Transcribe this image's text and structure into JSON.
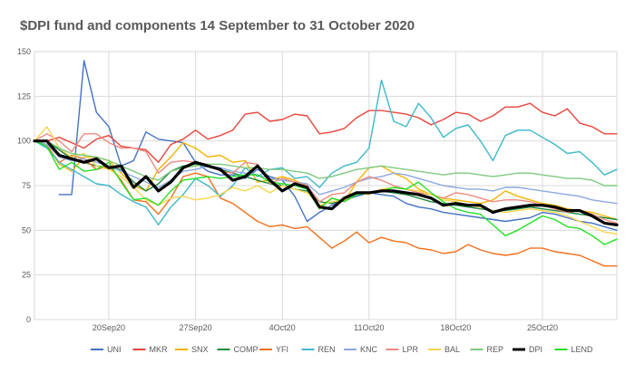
{
  "chart_data": {
    "type": "line",
    "title": "$DPI fund and components 14 September to 31 October 2020",
    "xlabel": "",
    "ylabel": "",
    "ylim": [
      0,
      150
    ],
    "y_ticks": [
      "0",
      "25",
      "50",
      "75",
      "100",
      "125",
      "150"
    ],
    "x_range": [
      0,
      47
    ],
    "x_ticks": [
      {
        "x": 6,
        "label": "20Sep20"
      },
      {
        "x": 13,
        "label": "27Sep20"
      },
      {
        "x": 20,
        "label": "4Oct20"
      },
      {
        "x": 27,
        "label": "11Oct20"
      },
      {
        "x": 34,
        "label": "18Oct20"
      },
      {
        "x": 41,
        "label": "25Oct20"
      }
    ],
    "grid": true,
    "legend_position": "bottom",
    "series": [
      {
        "name": "UNI",
        "color": "#4472C4",
        "values": [
          null,
          null,
          70,
          70,
          145,
          116,
          108,
          86,
          89,
          105,
          101,
          100,
          99,
          88,
          83,
          81,
          81,
          79,
          84,
          80,
          78,
          69,
          55,
          60,
          64,
          67,
          69,
          71,
          70,
          69,
          65,
          63,
          62,
          60,
          59,
          58,
          57,
          56,
          55,
          56,
          57,
          60,
          59,
          57,
          55,
          54,
          52,
          50
        ]
      },
      {
        "name": "MKR",
        "color": "#E8453C",
        "values": [
          100,
          100,
          102,
          99,
          96,
          101,
          103,
          97,
          96,
          95,
          88,
          98,
          101,
          106,
          101,
          103,
          106,
          115,
          116,
          111,
          112,
          115,
          114,
          104,
          105,
          107,
          113,
          117,
          117,
          116,
          115,
          113,
          109,
          112,
          116,
          115,
          111,
          114,
          119,
          119,
          121,
          116,
          114,
          118,
          110,
          108,
          104,
          104
        ]
      },
      {
        "name": "SNX",
        "color": "#F4B400",
        "values": [
          100,
          98,
          87,
          83,
          91,
          91,
          89,
          82,
          75,
          72,
          84,
          91,
          99,
          96,
          91,
          92,
          88,
          89,
          77,
          78,
          80,
          78,
          75,
          63,
          68,
          66,
          77,
          85,
          86,
          82,
          79,
          73,
          70,
          68,
          67,
          66,
          65,
          67,
          72,
          69,
          67,
          65,
          64,
          62,
          61,
          60,
          58,
          56
        ]
      },
      {
        "name": "COMP",
        "color": "#1F8B3F",
        "values": [
          100,
          100,
          95,
          90,
          88,
          86,
          85,
          84,
          77,
          72,
          76,
          83,
          86,
          87,
          86,
          84,
          82,
          80,
          78,
          76,
          75,
          73,
          72,
          66,
          65,
          67,
          70,
          71,
          72,
          71,
          70,
          68,
          66,
          65,
          64,
          63,
          62,
          61,
          61,
          62,
          63,
          62,
          61,
          60,
          59,
          58,
          57,
          56
        ]
      },
      {
        "name": "YFI",
        "color": "#F26F1D",
        "values": [
          100,
          97,
          88,
          92,
          90,
          84,
          86,
          78,
          67,
          66,
          59,
          68,
          80,
          82,
          80,
          68,
          65,
          60,
          55,
          52,
          53,
          51,
          52,
          46,
          40,
          44,
          49,
          43,
          46,
          44,
          43,
          40,
          39,
          37,
          38,
          42,
          39,
          37,
          36,
          37,
          40,
          40,
          38,
          37,
          36,
          33,
          30,
          30
        ]
      },
      {
        "name": "REN",
        "color": "#3EB8C9",
        "values": [
          100,
          96,
          88,
          84,
          80,
          76,
          75,
          70,
          66,
          63,
          53,
          63,
          70,
          79,
          75,
          69,
          75,
          85,
          80,
          84,
          85,
          79,
          80,
          74,
          82,
          86,
          88,
          96,
          134,
          111,
          108,
          121,
          113,
          102,
          107,
          109,
          100,
          89,
          103,
          106,
          106,
          102,
          98,
          93,
          94,
          88,
          81,
          84
        ]
      },
      {
        "name": "KNC",
        "color": "#8CA9E0",
        "values": [
          100,
          98,
          91,
          89,
          90,
          88,
          86,
          83,
          80,
          77,
          74,
          78,
          83,
          84,
          86,
          85,
          83,
          82,
          81,
          79,
          78,
          77,
          76,
          70,
          72,
          74,
          77,
          79,
          80,
          82,
          81,
          79,
          77,
          75,
          74,
          73,
          73,
          72,
          74,
          74,
          73,
          72,
          71,
          70,
          69,
          67,
          66,
          65
        ]
      },
      {
        "name": "LPR",
        "color": "#EE8A80",
        "values": [
          100,
          104,
          100,
          94,
          104,
          104,
          99,
          96,
          96,
          94,
          82,
          88,
          89,
          88,
          87,
          83,
          82,
          88,
          87,
          76,
          79,
          77,
          75,
          66,
          70,
          71,
          77,
          80,
          78,
          75,
          73,
          71,
          70,
          68,
          71,
          70,
          68,
          66,
          67,
          67,
          66,
          64,
          62,
          60,
          61,
          59,
          56,
          54
        ]
      },
      {
        "name": "BAL",
        "color": "#F7D54E",
        "values": [
          100,
          108,
          96,
          91,
          93,
          86,
          84,
          80,
          74,
          67,
          64,
          68,
          69,
          67,
          68,
          70,
          74,
          72,
          75,
          71,
          75,
          73,
          71,
          64,
          66,
          67,
          71,
          70,
          73,
          74,
          73,
          72,
          70,
          67,
          66,
          64,
          63,
          61,
          60,
          61,
          62,
          61,
          60,
          58,
          55,
          52,
          49,
          48
        ]
      },
      {
        "name": "REP",
        "color": "#7FC97F",
        "values": [
          100,
          100,
          96,
          93,
          92,
          91,
          89,
          86,
          83,
          80,
          78,
          83,
          85,
          86,
          87,
          87,
          86,
          85,
          85,
          84,
          84,
          83,
          82,
          79,
          80,
          82,
          84,
          85,
          86,
          85,
          84,
          83,
          82,
          81,
          82,
          82,
          81,
          80,
          81,
          82,
          82,
          81,
          80,
          79,
          79,
          78,
          75,
          75
        ]
      },
      {
        "name": "DPI",
        "color": "#000000",
        "values": [
          100,
          100,
          92,
          90,
          88,
          90,
          85,
          86,
          74,
          80,
          72,
          77,
          85,
          88,
          86,
          84,
          78,
          80,
          86,
          78,
          72,
          76,
          74,
          63,
          62,
          68,
          71,
          71,
          72,
          72,
          71,
          70,
          68,
          64,
          65,
          64,
          64,
          60,
          62,
          63,
          64,
          64,
          63,
          61,
          61,
          58,
          54,
          53
        ]
      },
      {
        "name": "LEND",
        "color": "#24E024",
        "values": [
          100,
          97,
          84,
          88,
          83,
          84,
          88,
          77,
          67,
          68,
          64,
          72,
          78,
          79,
          80,
          79,
          80,
          81,
          81,
          77,
          76,
          75,
          73,
          62,
          68,
          66,
          70,
          71,
          72,
          74,
          73,
          77,
          71,
          66,
          62,
          60,
          59,
          53,
          47,
          50,
          54,
          58,
          56,
          52,
          51,
          47,
          42,
          45
        ]
      }
    ]
  }
}
